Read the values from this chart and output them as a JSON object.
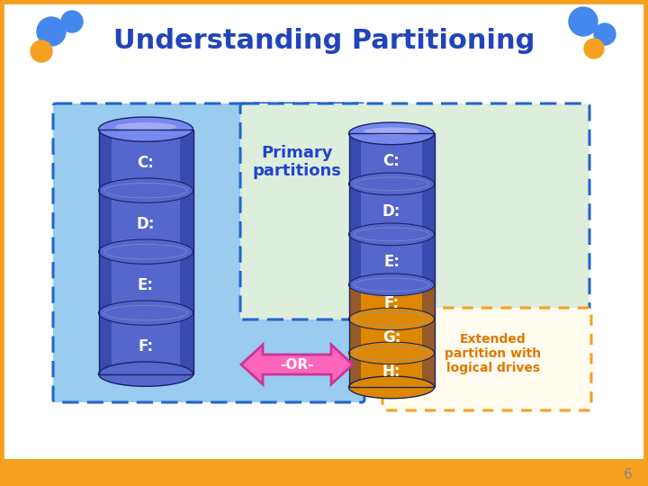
{
  "title": "Understanding Partitioning",
  "title_color": "#2244bb",
  "title_fontsize": 22,
  "bg_color": "#ffffff",
  "outer_border_color": "#f5a020",
  "inner_bg_color": "#99ccee",
  "inner_border_color": "#2266cc",
  "right_box_bg_color": "#ddeedd",
  "right_box_border_color": "#2266cc",
  "extended_box_bg_color": "#fffbee",
  "extended_box_border_color": "#f5a020",
  "extended_text": "Extended\npartition with\nlogical drives",
  "extended_text_color": "#e07800",
  "primary_label": "Primary\npartitions",
  "primary_label_color": "#2244cc",
  "cyl_blue": "#5566cc",
  "cyl_blue_hi": "#7788ee",
  "cyl_blue_lo": "#3344aa",
  "cyl_orange": "#dd8800",
  "cyl_orange_hi": "#ffaa22",
  "cyl_orange_lo": "#aa5500",
  "left_labels": [
    "C:",
    "D:",
    "E:",
    "F:"
  ],
  "right_labels_blue": [
    "C:",
    "D:",
    "E:"
  ],
  "right_labels_orange": [
    "F:",
    "G:",
    "H:"
  ],
  "or_text": "-OR-",
  "or_bg_color": "#ff66bb",
  "or_border_color": "#cc3399",
  "label_fontsize": 12,
  "page_number": "6",
  "page_number_color": "#888888"
}
